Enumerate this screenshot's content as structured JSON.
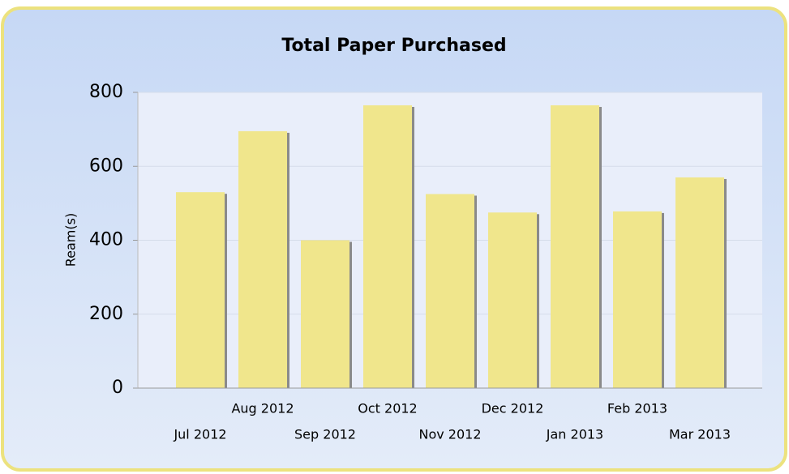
{
  "chart_data": {
    "type": "bar",
    "title": "Total Paper Purchased",
    "y_label": "Ream(s)",
    "categories": [
      "Jul 2012",
      "Aug 2012",
      "Sep 2012",
      "Oct 2012",
      "Nov 2012",
      "Dec 2012",
      "Jan 2013",
      "Feb 2013",
      "Mar 2013"
    ],
    "values": [
      530,
      695,
      400,
      765,
      525,
      475,
      765,
      478,
      570
    ],
    "color": "#f0e68c",
    "ylim": [
      0,
      800
    ],
    "yticks": [
      0,
      200,
      400,
      600,
      800
    ],
    "grid": true
  }
}
